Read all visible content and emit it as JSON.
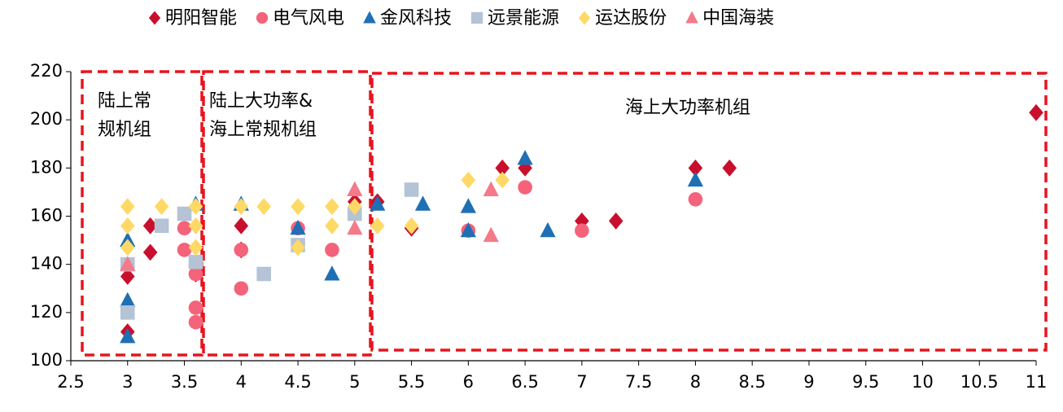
{
  "chart_data": {
    "type": "scatter",
    "xlim": [
      2.5,
      11
    ],
    "xticks": [
      2.5,
      3,
      3.5,
      4,
      4.5,
      5,
      5.5,
      6,
      6.5,
      7,
      7.5,
      8,
      8.5,
      9,
      9.5,
      10,
      10.5,
      11
    ],
    "ylim": [
      100,
      220
    ],
    "yticks": [
      100,
      120,
      140,
      160,
      180,
      200,
      220
    ],
    "grid": false,
    "legend": "top",
    "annotations": [
      [
        "陆上常",
        "规机组"
      ],
      [
        "陆上大功率&",
        "海上常规机组"
      ],
      [
        "海上大功率机组"
      ]
    ],
    "series": [
      {
        "name": "明阳智能",
        "color": "#c8102e",
        "marker": "diamond",
        "x": [
          3,
          3,
          3.2,
          3.2,
          3.6,
          4,
          4,
          5,
          5.2,
          5.5,
          6.3,
          6.5,
          7,
          7.3,
          8,
          8.3,
          11
        ],
        "values": [
          112,
          135,
          145,
          156,
          136,
          156,
          146,
          166,
          166,
          155,
          180,
          180,
          158,
          158,
          180,
          180,
          203
        ]
      },
      {
        "name": "电气风电",
        "color": "#f4637a",
        "marker": "circle",
        "x": [
          3.5,
          3.5,
          3.6,
          3.6,
          3.6,
          4,
          4,
          4.5,
          4.8,
          6,
          6.5,
          7,
          8
        ],
        "values": [
          155,
          146,
          136,
          122,
          116,
          146,
          130,
          155,
          146,
          154,
          172,
          154,
          167
        ]
      },
      {
        "name": "金风科技",
        "color": "#1f6fb5",
        "marker": "triangle",
        "x": [
          3,
          3,
          3,
          3.6,
          4,
          4.5,
          4.8,
          5.2,
          5.6,
          6,
          6,
          6.5,
          6.7,
          8
        ],
        "values": [
          110,
          125,
          150,
          165,
          165,
          155,
          136,
          165,
          165,
          164,
          154,
          184,
          154,
          175
        ]
      },
      {
        "name": "远景能源",
        "color": "#b4c3d6",
        "marker": "square",
        "x": [
          3,
          3,
          3.3,
          3.5,
          3.6,
          4.2,
          4.5,
          5,
          5.5
        ],
        "values": [
          120,
          140,
          156,
          161,
          141,
          136,
          148,
          161,
          171
        ]
      },
      {
        "name": "运达股份",
        "color": "#ffd966",
        "marker": "diamond",
        "x": [
          3,
          3,
          3,
          3.3,
          3.6,
          3.6,
          3.6,
          4,
          4.2,
          4.5,
          4.5,
          4.8,
          4.8,
          5,
          5.2,
          5.5,
          6,
          6.3
        ],
        "values": [
          164,
          156,
          147,
          164,
          156,
          147,
          164,
          164,
          164,
          164,
          147,
          164,
          156,
          164,
          156,
          156,
          175,
          175
        ]
      },
      {
        "name": "中国海装",
        "color": "#f47a8a",
        "marker": "triangle",
        "x": [
          3,
          5,
          5,
          6.2,
          6.2
        ],
        "values": [
          140,
          171,
          155,
          171,
          152
        ]
      }
    ]
  }
}
